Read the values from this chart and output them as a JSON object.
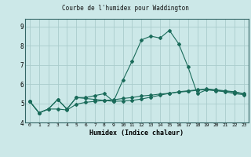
{
  "title": "Courbe de l'humidex pour Waddington",
  "xlabel": "Humidex (Indice chaleur)",
  "background_color": "#cce8e8",
  "line_color": "#1a6b5a",
  "grid_color": "#aacccc",
  "xlim": [
    -0.5,
    23.5
  ],
  "ylim": [
    4.0,
    9.4
  ],
  "yticks": [
    4,
    5,
    6,
    7,
    8,
    9
  ],
  "xticks": [
    0,
    1,
    2,
    3,
    4,
    5,
    6,
    7,
    8,
    9,
    10,
    11,
    12,
    13,
    14,
    15,
    16,
    17,
    18,
    19,
    20,
    21,
    22,
    23
  ],
  "series": [
    [
      5.1,
      4.5,
      4.7,
      5.2,
      4.7,
      5.3,
      5.3,
      5.4,
      5.5,
      5.1,
      6.2,
      7.2,
      8.3,
      8.5,
      8.4,
      8.8,
      8.1,
      6.9,
      5.5,
      5.7,
      5.65,
      5.6,
      5.5,
      5.45
    ],
    [
      5.1,
      4.5,
      4.7,
      4.7,
      4.65,
      4.95,
      5.05,
      5.1,
      5.15,
      5.18,
      5.25,
      5.3,
      5.38,
      5.42,
      5.48,
      5.52,
      5.58,
      5.62,
      5.68,
      5.72,
      5.68,
      5.62,
      5.58,
      5.48
    ],
    [
      5.1,
      4.5,
      4.7,
      5.2,
      4.7,
      5.3,
      5.25,
      5.2,
      5.15,
      5.1,
      5.12,
      5.15,
      5.22,
      5.32,
      5.42,
      5.52,
      5.6,
      5.65,
      5.7,
      5.75,
      5.7,
      5.65,
      5.6,
      5.5
    ]
  ]
}
